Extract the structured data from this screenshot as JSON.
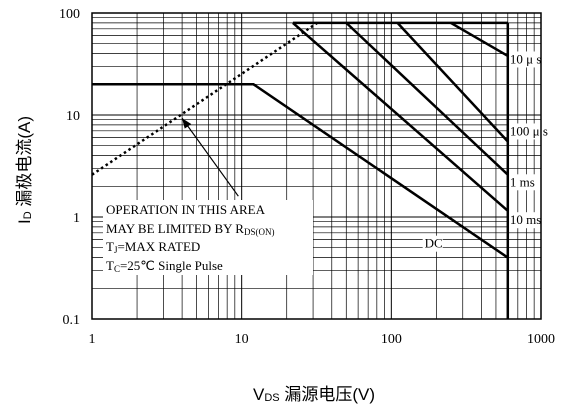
{
  "chart_data": {
    "type": "line",
    "title": "",
    "x_scale": "log",
    "y_scale": "log",
    "xlim": [
      1,
      1000
    ],
    "ylim": [
      0.1,
      100
    ],
    "grid": true,
    "xlabel": {
      "main": "V",
      "sub": "DS",
      "rest": " 漏源电压(V)"
    },
    "ylabel": {
      "main": "I",
      "sub": "D",
      "rest": " 漏极电流(A)"
    },
    "x_ticks": [
      {
        "value": 1,
        "label": "1"
      },
      {
        "value": 10,
        "label": "10"
      },
      {
        "value": 100,
        "label": "100"
      },
      {
        "value": 1000,
        "label": "1000"
      }
    ],
    "y_ticks": [
      {
        "value": 0.1,
        "label": "0.1"
      },
      {
        "value": 1,
        "label": "1"
      },
      {
        "value": 10,
        "label": "10"
      },
      {
        "value": 100,
        "label": "100"
      }
    ],
    "rds_limit_line": {
      "style": "dotted",
      "points": [
        [
          1,
          2.6
        ],
        [
          32,
          80
        ]
      ]
    },
    "series": [
      {
        "name": "10 μ s",
        "points": [
          [
            250,
            80
          ],
          [
            600,
            38
          ]
        ],
        "label_at": [
          620,
          32
        ]
      },
      {
        "name": "100 μ s",
        "points": [
          [
            110,
            80
          ],
          [
            600,
            5.5
          ]
        ],
        "label_at": [
          620,
          6.3
        ]
      },
      {
        "name": "1 ms",
        "points": [
          [
            50,
            80
          ],
          [
            600,
            2.6
          ]
        ],
        "label_at": [
          620,
          2.0
        ]
      },
      {
        "name": "10 ms",
        "points": [
          [
            22,
            80
          ],
          [
            600,
            1.15
          ]
        ],
        "label_at": [
          620,
          0.85
        ]
      },
      {
        "name": "DC",
        "points": [
          [
            1,
            20
          ],
          [
            12,
            20
          ],
          [
            600,
            0.4
          ]
        ],
        "label_at": [
          167,
          0.5
        ]
      }
    ],
    "vds_max_line": {
      "x": 600,
      "y_range": [
        0.1,
        80
      ]
    },
    "id_max_line": {
      "y": 80,
      "x_range": [
        22,
        600
      ]
    },
    "annotation": {
      "lines": [
        {
          "text": "OPERATION IN THIS AREA"
        },
        {
          "text": "MAY BE LIMITED BY R",
          "sub": "DS(ON)"
        },
        {
          "text": "T",
          "sub": "J",
          "after": "=MAX RATED"
        },
        {
          "text": "T",
          "sub": "C",
          "after": "=25℃  Single Pulse"
        }
      ],
      "arrow_from": [
        9.5,
        1.6
      ],
      "arrow_to": [
        4.0,
        9.3
      ]
    }
  }
}
